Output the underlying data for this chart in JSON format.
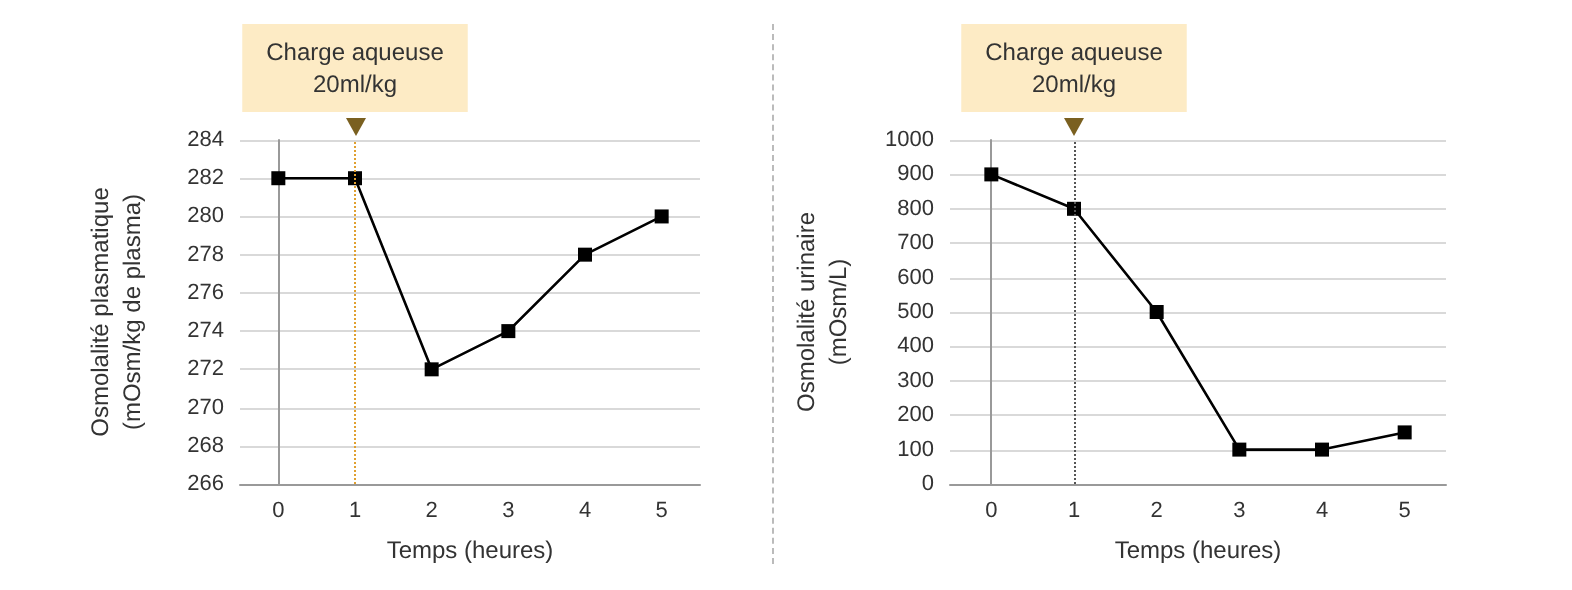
{
  "chart_data": [
    {
      "type": "line",
      "x": [
        0,
        1,
        2,
        3,
        4,
        5
      ],
      "xlabel": "Temps (heures)",
      "ylabel": "Osmolalité plasmatique\n(mOsm/kg de plasma)",
      "series": [
        {
          "color": "#000000",
          "values": [
            282,
            282,
            272,
            274,
            278,
            280
          ]
        }
      ],
      "xlim": [
        -0.5,
        5.5
      ],
      "xticks": [
        0,
        1,
        2,
        3,
        4,
        5
      ],
      "ylim": [
        266,
        284
      ],
      "yticks": [
        266,
        268,
        270,
        272,
        274,
        276,
        278,
        280,
        282,
        284
      ],
      "grid": "y",
      "marker": "square",
      "line_style": "solid",
      "ref_lines": [
        {
          "axis": "x",
          "value": 1,
          "label": "Charge aqueuse\n20ml/kg",
          "color": "#e0a030",
          "line_style": "dotted"
        }
      ]
    },
    {
      "type": "line",
      "x": [
        0,
        1,
        2,
        3,
        4,
        5
      ],
      "xlabel": "Temps (heures)",
      "ylabel": "Osmolalité urinaire\n(mOsm/L)",
      "series": [
        {
          "color": "#000000",
          "values": [
            900,
            800,
            500,
            100,
            100,
            150
          ]
        }
      ],
      "xlim": [
        -0.5,
        5.5
      ],
      "xticks": [
        0,
        1,
        2,
        3,
        4,
        5
      ],
      "ylim": [
        0,
        1000
      ],
      "yticks": [
        0,
        100,
        200,
        300,
        400,
        500,
        600,
        700,
        800,
        900,
        1000
      ],
      "grid": "y",
      "marker": "square",
      "line_style": "solid",
      "ref_lines": [
        {
          "axis": "x",
          "value": 1,
          "label": "Charge aqueuse\n20ml/kg",
          "color": "#555555",
          "line_style": "dotted"
        }
      ]
    }
  ]
}
